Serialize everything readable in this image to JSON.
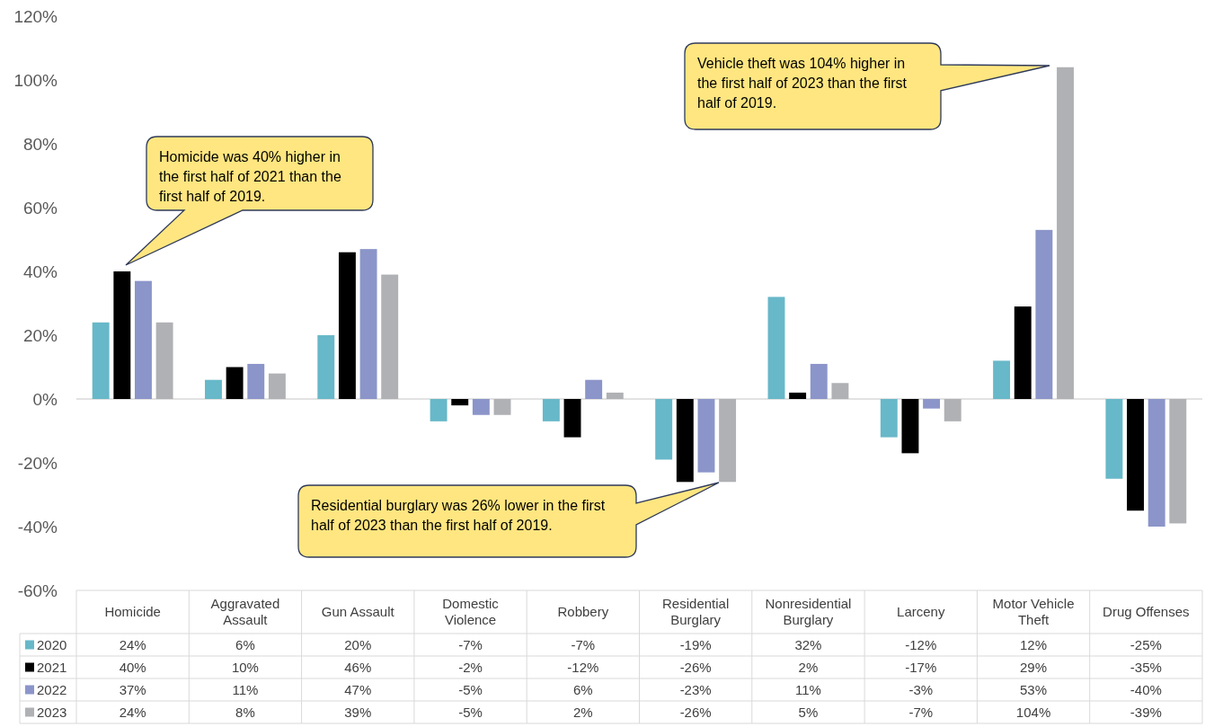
{
  "chart_data": {
    "type": "bar",
    "categories": [
      "Homicide",
      "Aggravated Assault",
      "Gun Assault",
      "Domestic Violence",
      "Robbery",
      "Residential Burglary",
      "Nonresidential Burglary",
      "Larceny",
      "Motor Vehicle Theft",
      "Drug Offenses"
    ],
    "series": [
      {
        "name": "2020",
        "color": "#67b8c9",
        "values": [
          24,
          6,
          20,
          -7,
          -7,
          -19,
          32,
          -12,
          12,
          -25
        ],
        "value_labels": [
          "24%",
          "6%",
          "20%",
          "-7%",
          "-7%",
          "-19%",
          "32%",
          "-12%",
          "12%",
          "-25%"
        ]
      },
      {
        "name": "2021",
        "color": "#000000",
        "values": [
          40,
          10,
          46,
          -2,
          -12,
          -26,
          2,
          -17,
          29,
          -35
        ],
        "value_labels": [
          "40%",
          "10%",
          "46%",
          "-2%",
          "-12%",
          "-26%",
          "2%",
          "-17%",
          "29%",
          "-35%"
        ]
      },
      {
        "name": "2022",
        "color": "#8b95c9",
        "values": [
          37,
          11,
          47,
          -5,
          6,
          -23,
          11,
          -3,
          53,
          -40
        ],
        "value_labels": [
          "37%",
          "11%",
          "47%",
          "-5%",
          "6%",
          "-23%",
          "11%",
          "-3%",
          "53%",
          "-40%"
        ]
      },
      {
        "name": "2023",
        "color": "#b0b1b4",
        "values": [
          24,
          8,
          39,
          -5,
          2,
          -26,
          5,
          -7,
          104,
          -39
        ],
        "value_labels": [
          "24%",
          "8%",
          "39%",
          "-5%",
          "2%",
          "-26%",
          "5%",
          "-7%",
          "104%",
          "-39%"
        ]
      }
    ],
    "ylim": [
      -60,
      120
    ],
    "yticks": [
      {
        "value": -60,
        "label": "-60%"
      },
      {
        "value": -40,
        "label": "-40%"
      },
      {
        "value": -20,
        "label": "-20%"
      },
      {
        "value": 0,
        "label": "0%"
      },
      {
        "value": 20,
        "label": "20%"
      },
      {
        "value": 40,
        "label": "40%"
      },
      {
        "value": 60,
        "label": "60%"
      },
      {
        "value": 80,
        "label": "80%"
      },
      {
        "value": 100,
        "label": "100%"
      },
      {
        "value": 120,
        "label": "120%"
      }
    ],
    "legend": "bottom",
    "annotations": [
      "Homicide was 40% higher in the first half of 2021 than the first half of 2019.",
      "Vehicle theft was 104% higher in the first half of 2023 than the first half of 2019.",
      "Residential burglary was 26% lower in the first half of 2023 than the first half of 2019."
    ]
  }
}
